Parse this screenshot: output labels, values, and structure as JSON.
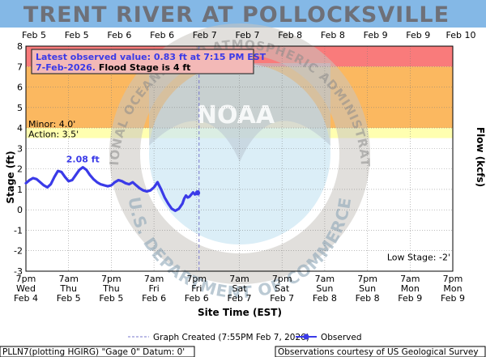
{
  "title": "TRENT RIVER AT POLLOCKSVILLE",
  "colors": {
    "banner": "#84b8e6",
    "major_band": "#f97b7b",
    "moderate_band": "#fbb860",
    "action_band": "#ffffb0",
    "observed": "#3a3ae8",
    "created_line": "#7777cc",
    "noaa_watermark": "#c8c4c0"
  },
  "top_axis": [
    "Feb 5",
    "Feb 5",
    "Feb 6",
    "Feb 6",
    "Feb 7",
    "Feb 7",
    "Feb 8",
    "Feb 8",
    "Feb 9",
    "Feb 9",
    "Feb 10"
  ],
  "bottom_axis": [
    [
      "7pm",
      "Wed",
      "Feb 4"
    ],
    [
      "7am",
      "Thu",
      "Feb 5"
    ],
    [
      "7pm",
      "Thu",
      "Feb 5"
    ],
    [
      "7am",
      "Fri",
      "Feb 6"
    ],
    [
      "7pm",
      "Fri",
      "Feb 6"
    ],
    [
      "7am",
      "Sat",
      "Feb 7"
    ],
    [
      "7pm",
      "Sat",
      "Feb 7"
    ],
    [
      "7am",
      "Sun",
      "Feb 8"
    ],
    [
      "7pm",
      "Sun",
      "Feb 8"
    ],
    [
      "7am",
      "Mon",
      "Feb 9"
    ],
    [
      "7pm",
      "Mon",
      "Feb 9"
    ]
  ],
  "left_axis_title": "Stage (ft)",
  "right_axis_title": "Flow (kcfs)",
  "x_axis_title": "Site Time (EST)",
  "band_labels": {
    "minor": "Minor: 4.0'",
    "action": "Action: 3.5'",
    "low_stage": "Low Stage: -2'"
  },
  "info_box": {
    "line1": "Latest observed value: 0.83 ft at 7:15 PM EST",
    "line2_blue": "7-Feb-2026.",
    "line2_black": " Flood Stage is 4 ft"
  },
  "peak_label": "2.08 ft",
  "footer": {
    "legend_created": "Graph Created (7:55PM Feb 7, 2026)",
    "legend_observed": "Observed",
    "datum": "PLLN7(plotting HGIRG) \"Gage 0\" Datum: 0'",
    "courtesy": "Observations courtesy of US Geological Survey"
  },
  "watermark": {
    "ring_text": "NATIONAL OCEANIC AND ATMOSPHERIC ADMINISTRATION",
    "bottom_text": "U.S. DEPARTMENT OF COMMERCE",
    "logo_text": "NOAA"
  },
  "chart_data": {
    "type": "line",
    "x_unit": "hours after 7pm Wed Feb 4, 2026 (EST)",
    "xlim": [
      0,
      120
    ],
    "ylim": [
      -3,
      8
    ],
    "y_ticks": [
      -3,
      -2,
      -1,
      0,
      1,
      2,
      3,
      4,
      5,
      6,
      7,
      8
    ],
    "stages": {
      "action": 3.5,
      "minor": 4.0,
      "moderate": 7.0,
      "major": 8.0,
      "low": -2.0
    },
    "graph_created_x": 48.67,
    "series": [
      {
        "name": "Observed",
        "x": [
          0,
          1,
          2,
          3,
          4,
          5,
          6,
          7,
          8,
          9,
          10,
          11,
          12,
          13,
          14,
          15,
          16,
          17,
          18,
          19,
          20,
          21,
          22,
          23,
          24,
          25,
          26,
          27,
          28,
          29,
          30,
          31,
          32,
          33,
          34,
          35,
          36,
          37,
          38,
          39,
          40,
          41,
          42,
          43,
          44,
          44.5,
          45,
          45.5,
          46,
          46.5,
          47,
          47.5,
          48,
          48.25
        ],
        "y": [
          1.3,
          1.45,
          1.55,
          1.5,
          1.35,
          1.2,
          1.1,
          1.25,
          1.6,
          1.9,
          1.85,
          1.6,
          1.4,
          1.45,
          1.7,
          1.95,
          2.08,
          1.95,
          1.7,
          1.5,
          1.35,
          1.25,
          1.2,
          1.15,
          1.2,
          1.35,
          1.45,
          1.4,
          1.3,
          1.25,
          1.35,
          1.2,
          1.05,
          0.95,
          0.9,
          0.95,
          1.1,
          1.35,
          1.0,
          0.6,
          0.3,
          0.05,
          -0.05,
          0.05,
          0.3,
          0.55,
          0.7,
          0.6,
          0.65,
          0.75,
          0.85,
          0.75,
          0.8,
          0.83
        ]
      }
    ],
    "peak": {
      "x": 16,
      "y": 2.08
    }
  }
}
